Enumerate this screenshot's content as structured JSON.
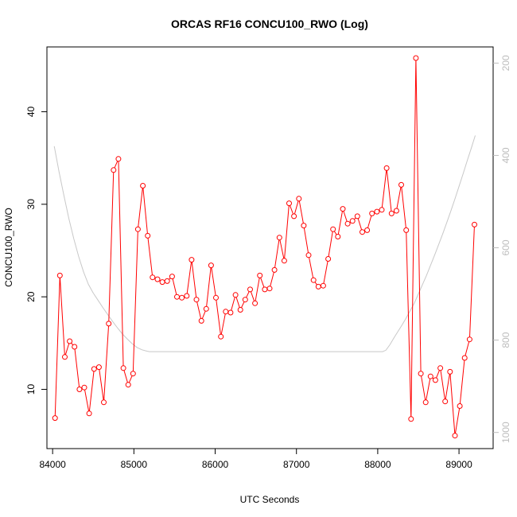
{
  "chart_data": {
    "type": "line",
    "title": "ORCAS RF16 CONCU100_RWO (Log)",
    "xlabel": "UTC Seconds",
    "ylabel": "CONCU100_RWO",
    "xlim": [
      83930,
      89420
    ],
    "ylim": [
      3.6,
      47.0
    ],
    "y2lim": [
      165,
      1035
    ],
    "y2_reversed": true,
    "grid": false,
    "x_ticks": [
      84000,
      85000,
      86000,
      87000,
      88000,
      89000
    ],
    "y_ticks": [
      10,
      20,
      30,
      40
    ],
    "y2_ticks": [
      200,
      400,
      600,
      800,
      1000
    ],
    "series": [
      {
        "color": "#ff0000",
        "style": "line+points",
        "x": [
          84030,
          84090,
          84150,
          84210,
          84270,
          84330,
          84390,
          84450,
          84510,
          84570,
          84630,
          84690,
          84750,
          84810,
          84870,
          84930,
          84990,
          85050,
          85110,
          85170,
          85230,
          85290,
          85350,
          85410,
          85470,
          85530,
          85590,
          85650,
          85710,
          85770,
          85830,
          85890,
          85950,
          86010,
          86070,
          86130,
          86190,
          86250,
          86310,
          86370,
          86430,
          86490,
          86550,
          86610,
          86670,
          86730,
          86790,
          86850,
          86910,
          86970,
          87030,
          87090,
          87150,
          87210,
          87270,
          87330,
          87390,
          87450,
          87510,
          87570,
          87630,
          87690,
          87750,
          87810,
          87870,
          87930,
          87990,
          88050,
          88110,
          88170,
          88230,
          88290,
          88350,
          88410,
          88470,
          88530,
          88590,
          88650,
          88710,
          88770,
          88830,
          88890,
          88950,
          89010,
          89070,
          89130,
          89190
        ],
        "y": [
          6.9,
          22.3,
          13.5,
          15.2,
          14.6,
          10.0,
          10.2,
          7.4,
          12.2,
          12.4,
          8.6,
          17.1,
          33.7,
          34.9,
          12.3,
          10.5,
          11.7,
          27.3,
          32.0,
          26.6,
          22.1,
          21.9,
          21.6,
          21.7,
          22.2,
          20.0,
          19.9,
          20.1,
          24.0,
          19.7,
          17.4,
          18.7,
          23.4,
          19.9,
          15.7,
          18.4,
          18.3,
          20.2,
          18.6,
          19.7,
          20.8,
          19.3,
          22.3,
          20.8,
          20.9,
          22.9,
          26.4,
          23.9,
          30.1,
          28.7,
          30.6,
          27.7,
          24.5,
          21.8,
          21.1,
          21.2,
          24.1,
          27.3,
          26.5,
          29.5,
          27.9,
          28.2,
          28.7,
          27.0,
          27.2,
          29.0,
          29.2,
          29.4,
          33.9,
          29.0,
          29.3,
          32.1,
          27.2,
          6.8,
          45.8,
          11.7,
          8.6,
          11.4,
          11.0,
          12.3,
          8.7,
          11.9,
          5.0,
          8.2,
          13.4,
          15.4,
          27.8
        ]
      },
      {
        "color": "#c8c8c8",
        "axis": "right",
        "style": "line",
        "x": [
          84020,
          84080,
          84140,
          84200,
          84260,
          84320,
          84380,
          84440,
          84500,
          84560,
          84620,
          84680,
          84740,
          84800,
          84860,
          84920,
          84980,
          85040,
          85100,
          85160,
          85190,
          85220,
          85500,
          86000,
          86500,
          87000,
          87500,
          88000,
          88060,
          88100,
          88150,
          88200,
          88250,
          88300,
          88350,
          88400,
          88450,
          88500,
          88550,
          88600,
          88650,
          88700,
          88750,
          88800,
          88850,
          88900,
          88950,
          89000,
          89050,
          89100,
          89150,
          89200
        ],
        "y": [
          380,
          436,
          488,
          537,
          580,
          619,
          652,
          679,
          698,
          714,
          730,
          745,
          760,
          774,
          787,
          798,
          808,
          816,
          821,
          824,
          825,
          825,
          825,
          825,
          825,
          825,
          825,
          825,
          825,
          822,
          810,
          795,
          781,
          767,
          752,
          736,
          720,
          700,
          680,
          660,
          638,
          616,
          593,
          570,
          545,
          520,
          494,
          467,
          440,
          412,
          385,
          357
        ]
      }
    ]
  }
}
